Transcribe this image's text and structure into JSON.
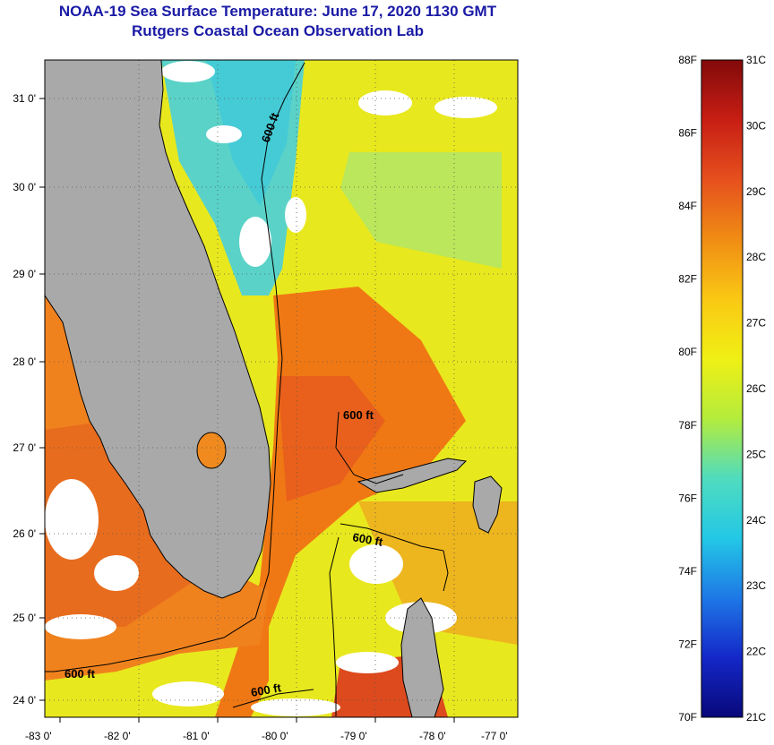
{
  "title": {
    "line1": "NOAA-19 Sea Surface Temperature:  June 17, 2020 1130 GMT",
    "line2": "Rutgers Coastal Ocean Observation Lab"
  },
  "map": {
    "lon_ticks": [
      "-83 0'",
      "-82 0'",
      "-81 0'",
      "-80 0'",
      "-79 0'",
      "-78 0'",
      "-77 0'"
    ],
    "lat_ticks": [
      "31 0'",
      "30 0'",
      "29 0'",
      "28 0'",
      "27 0'",
      "26 0'",
      "25 0'",
      "24 0'"
    ],
    "contour_labels": [
      "600 ft",
      "600 ft",
      "600 ft",
      "600 ft",
      "600 ft"
    ],
    "colors": {
      "land": "#a9a9a9",
      "coast": "#000000",
      "frame": "#000000",
      "grid": "#555555"
    }
  },
  "colorbar": {
    "fahrenheit_labels": [
      "88F",
      "86F",
      "84F",
      "82F",
      "80F",
      "78F",
      "76F",
      "74F",
      "72F",
      "70F"
    ],
    "celsius_labels": [
      "31C",
      "30C",
      "29C",
      "28C",
      "27C",
      "26C",
      "25C",
      "24C",
      "23C",
      "22C",
      "21C"
    ],
    "stops": [
      "#08087a",
      "#1428c8",
      "#1e78e6",
      "#23c8e6",
      "#50dcbe",
      "#b4ec3c",
      "#f0f014",
      "#fac814",
      "#f08c14",
      "#e6501e",
      "#c81e14",
      "#820a0a"
    ]
  }
}
